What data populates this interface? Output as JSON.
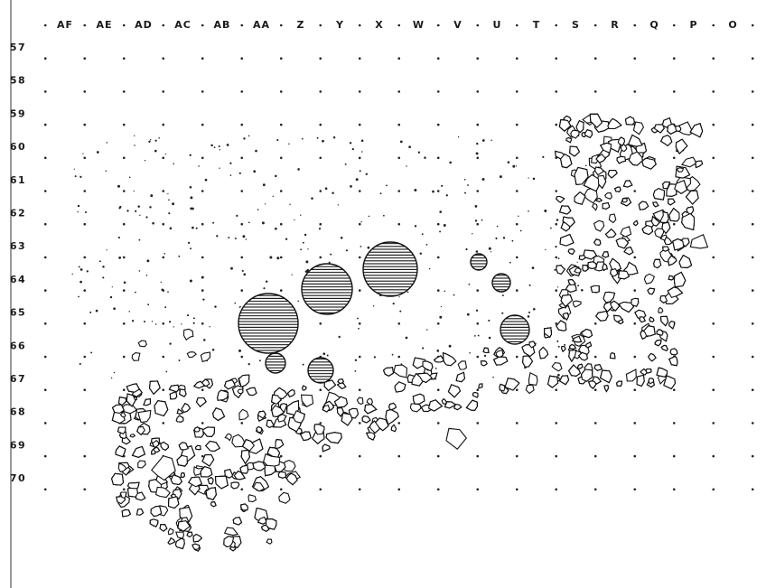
{
  "map": {
    "columns": [
      "AF",
      "AE",
      "AD",
      "AC",
      "AB",
      "AA",
      "Z",
      "Y",
      "X",
      "W",
      "V",
      "U",
      "T",
      "S",
      "R",
      "Q",
      "P",
      "O"
    ],
    "rows": [
      "57",
      "58",
      "59",
      "60",
      "61",
      "62",
      "63",
      "64",
      "65",
      "66",
      "67",
      "68",
      "69",
      "70"
    ],
    "colors": {
      "background": "#ffffff",
      "ink": "#111111"
    }
  }
}
